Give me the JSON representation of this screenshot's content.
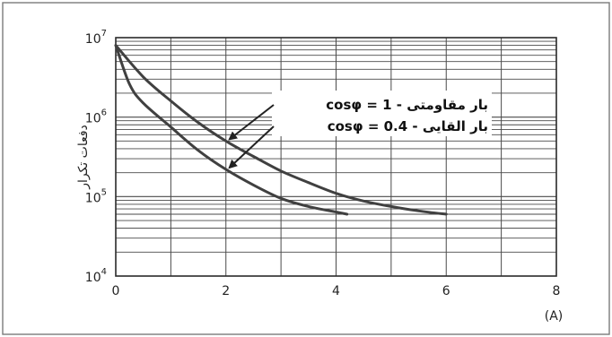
{
  "chart_data": {
    "type": "line",
    "ylabel": "دفعات تکرار",
    "xunit": "(A)",
    "x_ticks": [
      0,
      2,
      4,
      6,
      8
    ],
    "xlim": [
      0,
      8
    ],
    "y_scale": "log",
    "ylim": [
      10000,
      10000000
    ],
    "y_ticks": [
      {
        "base": "10",
        "exp": "4",
        "value": 10000
      },
      {
        "base": "10",
        "exp": "5",
        "value": 100000
      },
      {
        "base": "10",
        "exp": "6",
        "value": 1000000
      },
      {
        "base": "10",
        "exp": "7",
        "value": 10000000
      }
    ],
    "grid": true,
    "series": [
      {
        "name": "بار مقاومتی - 1 = cosφ",
        "x": [
          0,
          0.5,
          1,
          1.5,
          2,
          2.5,
          3,
          3.5,
          4,
          4.5,
          5,
          5.5,
          6
        ],
        "y": [
          8000000,
          3200000,
          1600000,
          850000,
          500000,
          320000,
          210000,
          150000,
          110000,
          88000,
          75000,
          66000,
          60000
        ]
      },
      {
        "name": "بار القایی - 0.4 = cosφ",
        "x": [
          0,
          0.25,
          0.5,
          1,
          1.5,
          2,
          2.5,
          3,
          3.5,
          4,
          4.2
        ],
        "y": [
          8000000,
          2600000,
          1500000,
          750000,
          380000,
          220000,
          140000,
          95000,
          75000,
          64000,
          60000
        ]
      }
    ],
    "annotations": [
      {
        "text": "cosφ = 1 - بار مقاومتی",
        "series": 0,
        "at_x": 2.0,
        "at_y": 500000
      },
      {
        "text": "cosφ = 0.4 - بار القایی",
        "series": 1,
        "at_x": 2.0,
        "at_y": 220000
      }
    ],
    "colors": {
      "curve": "#404040",
      "grid": "#4a4a4a",
      "border": "#2a2a2a",
      "frame": "#7a7a7a"
    }
  }
}
